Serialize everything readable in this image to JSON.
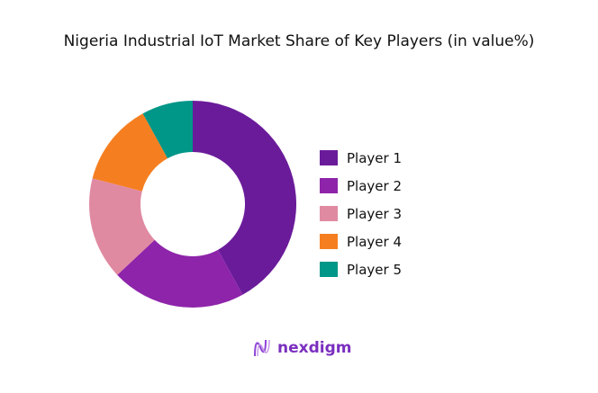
{
  "chart_data": {
    "type": "pie",
    "donut": true,
    "title": "Nigeria Industrial IoT Market Share of Key Players (in value%)",
    "categories": [
      "Player 1",
      "Player 2",
      "Player 3",
      "Player 4",
      "Player 5"
    ],
    "values": [
      42,
      21,
      16,
      13,
      8
    ],
    "colors": [
      "#6a1b9a",
      "#8e24aa",
      "#e08aa2",
      "#f57f20",
      "#009688"
    ],
    "legend_position": "right"
  },
  "brand": {
    "logo_text": "nexdigm"
  }
}
